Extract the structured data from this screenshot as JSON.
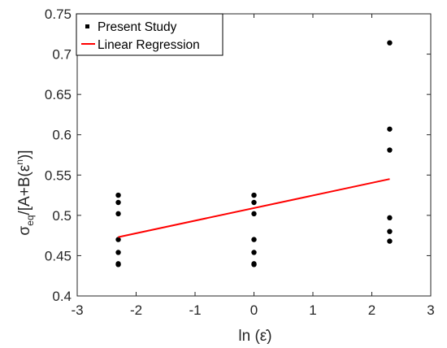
{
  "chart_data": {
    "type": "scatter",
    "xlabel": "ln (ε̇)",
    "ylabel_main": "σ",
    "ylabel_sub": "eq",
    "ylabel_mid": "/[A+B(ε",
    "ylabel_sup": "n",
    "ylabel_end": ")]",
    "xlim": [
      -3,
      3
    ],
    "ylim": [
      0.4,
      0.75
    ],
    "x_ticks": [
      "-3",
      "-2",
      "-1",
      "0",
      "1",
      "2",
      "3"
    ],
    "y_ticks": [
      "0.4",
      "0.45",
      "0.5",
      "0.55",
      "0.6",
      "0.65",
      "0.7",
      "0.75"
    ],
    "grid": false,
    "legend_position": "top-left",
    "series": [
      {
        "name": "Present Study",
        "kind": "points",
        "color": "#000000",
        "x": [
          -2.303,
          -2.303,
          -2.303,
          -2.303,
          -2.303,
          -2.303,
          -2.303,
          0,
          0,
          0,
          0,
          0,
          0,
          0,
          2.303,
          2.303,
          2.303,
          2.303,
          2.303,
          2.303
        ],
        "y": [
          0.525,
          0.516,
          0.502,
          0.47,
          0.454,
          0.44,
          0.439,
          0.525,
          0.516,
          0.502,
          0.47,
          0.454,
          0.439,
          0.44,
          0.714,
          0.607,
          0.581,
          0.497,
          0.48,
          0.468
        ]
      },
      {
        "name": "Linear Regression",
        "kind": "line",
        "color": "#ff0000",
        "x": [
          -2.303,
          2.303
        ],
        "y": [
          0.473,
          0.545
        ]
      }
    ]
  }
}
